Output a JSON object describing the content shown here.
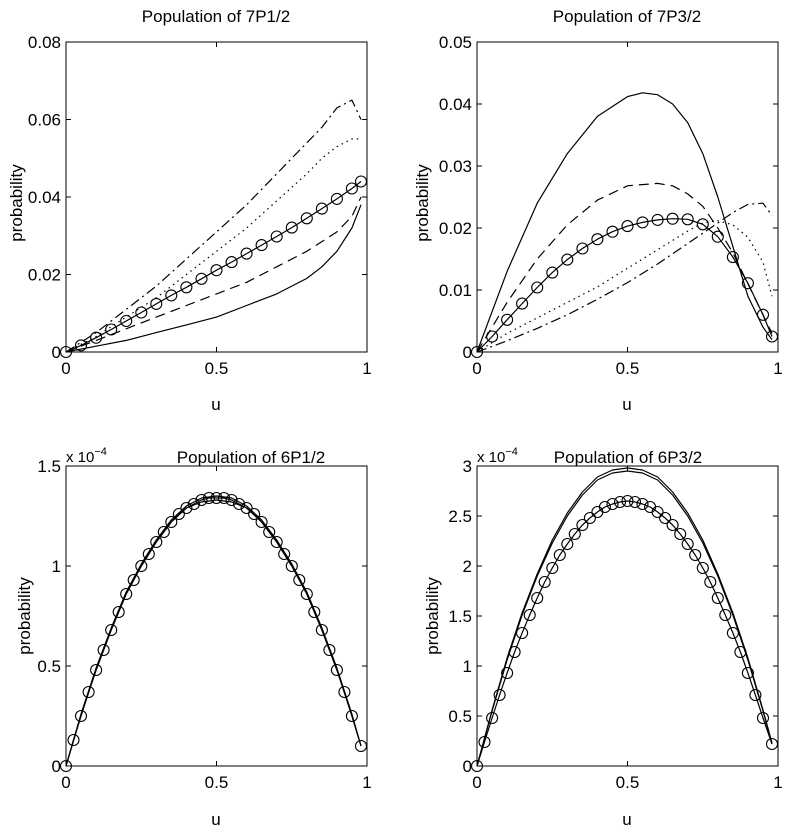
{
  "chart_data": [
    {
      "type": "line",
      "title": "Population of 7P1/2",
      "xlabel": "u",
      "ylabel": "probability",
      "multiplier_base": "",
      "multiplier_exp": "",
      "xlim": [
        0,
        1
      ],
      "ylim": [
        0,
        0.08
      ],
      "xticks": [
        0,
        0.5,
        1
      ],
      "xtick_labels": [
        "0",
        "0.5",
        "1"
      ],
      "yticks": [
        0,
        0.02,
        0.04,
        0.06,
        0.08
      ],
      "ytick_labels": [
        "0",
        "0.02",
        "0.04",
        "0.06",
        "0.08"
      ],
      "grid": false,
      "series": [
        {
          "name": "solid",
          "style": "solid",
          "markers": false,
          "x": [
            0,
            0.1,
            0.2,
            0.3,
            0.4,
            0.5,
            0.6,
            0.7,
            0.8,
            0.85,
            0.9,
            0.95,
            0.98
          ],
          "y": [
            0,
            0.0015,
            0.003,
            0.005,
            0.007,
            0.009,
            0.012,
            0.015,
            0.019,
            0.022,
            0.026,
            0.032,
            0.038
          ]
        },
        {
          "name": "dashed",
          "style": "dashed",
          "markers": false,
          "x": [
            0,
            0.1,
            0.2,
            0.3,
            0.4,
            0.5,
            0.6,
            0.7,
            0.8,
            0.9,
            0.95,
            0.98
          ],
          "y": [
            0,
            0.003,
            0.006,
            0.009,
            0.012,
            0.015,
            0.018,
            0.022,
            0.026,
            0.031,
            0.035,
            0.04
          ]
        },
        {
          "name": "circles",
          "style": "solid",
          "markers": true,
          "x": [
            0,
            0.05,
            0.1,
            0.15,
            0.2,
            0.25,
            0.3,
            0.35,
            0.4,
            0.45,
            0.5,
            0.55,
            0.6,
            0.65,
            0.7,
            0.75,
            0.8,
            0.85,
            0.9,
            0.95,
            0.98
          ],
          "y": [
            0,
            0.0017,
            0.0037,
            0.0058,
            0.008,
            0.0102,
            0.0124,
            0.0146,
            0.0167,
            0.0189,
            0.0211,
            0.0232,
            0.0254,
            0.0276,
            0.0298,
            0.0321,
            0.0345,
            0.037,
            0.0395,
            0.0422,
            0.044
          ]
        },
        {
          "name": "dotted",
          "style": "dotted",
          "markers": false,
          "x": [
            0,
            0.1,
            0.2,
            0.3,
            0.4,
            0.5,
            0.6,
            0.7,
            0.8,
            0.85,
            0.9,
            0.95,
            0.98
          ],
          "y": [
            0,
            0.004,
            0.009,
            0.014,
            0.02,
            0.026,
            0.032,
            0.039,
            0.046,
            0.05,
            0.053,
            0.055,
            0.055
          ]
        },
        {
          "name": "dashdot",
          "style": "dashdot",
          "markers": false,
          "x": [
            0,
            0.1,
            0.2,
            0.3,
            0.4,
            0.5,
            0.6,
            0.7,
            0.8,
            0.85,
            0.9,
            0.95,
            0.98
          ],
          "y": [
            0,
            0.005,
            0.011,
            0.017,
            0.024,
            0.031,
            0.038,
            0.046,
            0.054,
            0.058,
            0.063,
            0.065,
            0.06
          ]
        }
      ]
    },
    {
      "type": "line",
      "title": "Population of 7P3/2",
      "xlabel": "u",
      "ylabel": "probability",
      "multiplier_base": "",
      "multiplier_exp": "",
      "xlim": [
        0,
        1
      ],
      "ylim": [
        0,
        0.05
      ],
      "xticks": [
        0,
        0.5,
        1
      ],
      "xtick_labels": [
        "0",
        "0.5",
        "1"
      ],
      "yticks": [
        0,
        0.01,
        0.02,
        0.03,
        0.04,
        0.05
      ],
      "ytick_labels": [
        "0",
        "0.01",
        "0.02",
        "0.03",
        "0.04",
        "0.05"
      ],
      "grid": false,
      "series": [
        {
          "name": "solid",
          "style": "solid",
          "markers": false,
          "x": [
            0,
            0.1,
            0.2,
            0.3,
            0.4,
            0.5,
            0.55,
            0.6,
            0.65,
            0.7,
            0.75,
            0.8,
            0.85,
            0.9,
            0.95,
            0.98
          ],
          "y": [
            0,
            0.013,
            0.024,
            0.032,
            0.038,
            0.0412,
            0.0418,
            0.0415,
            0.04,
            0.037,
            0.032,
            0.025,
            0.017,
            0.009,
            0.004,
            0.002
          ]
        },
        {
          "name": "dashed",
          "style": "dashed",
          "markers": false,
          "x": [
            0,
            0.1,
            0.2,
            0.3,
            0.4,
            0.5,
            0.6,
            0.65,
            0.7,
            0.75,
            0.8,
            0.85,
            0.9,
            0.95,
            0.98
          ],
          "y": [
            0,
            0.008,
            0.015,
            0.0205,
            0.0245,
            0.0268,
            0.0272,
            0.0268,
            0.0255,
            0.0235,
            0.02,
            0.016,
            0.011,
            0.006,
            0.003
          ]
        },
        {
          "name": "circles",
          "style": "solid",
          "markers": true,
          "x": [
            0,
            0.05,
            0.1,
            0.15,
            0.2,
            0.25,
            0.3,
            0.35,
            0.4,
            0.45,
            0.5,
            0.55,
            0.6,
            0.65,
            0.7,
            0.75,
            0.8,
            0.85,
            0.9,
            0.95,
            0.98
          ],
          "y": [
            0,
            0.0025,
            0.0052,
            0.0078,
            0.0104,
            0.0128,
            0.0149,
            0.0167,
            0.0182,
            0.0194,
            0.0203,
            0.0209,
            0.0213,
            0.0215,
            0.0214,
            0.0206,
            0.0186,
            0.0153,
            0.0111,
            0.006,
            0.0025
          ]
        },
        {
          "name": "dotted",
          "style": "dotted",
          "markers": false,
          "x": [
            0,
            0.1,
            0.2,
            0.3,
            0.4,
            0.5,
            0.6,
            0.7,
            0.75,
            0.8,
            0.85,
            0.9,
            0.95,
            0.98
          ],
          "y": [
            0,
            0.003,
            0.0055,
            0.008,
            0.0105,
            0.0135,
            0.0165,
            0.0195,
            0.0208,
            0.0212,
            0.0205,
            0.0185,
            0.0145,
            0.009
          ]
        },
        {
          "name": "dashdot",
          "style": "dashdot",
          "markers": false,
          "x": [
            0,
            0.1,
            0.2,
            0.3,
            0.4,
            0.5,
            0.6,
            0.7,
            0.8,
            0.85,
            0.9,
            0.95,
            0.98
          ],
          "y": [
            0,
            0.0018,
            0.0038,
            0.006,
            0.0085,
            0.0112,
            0.0142,
            0.0175,
            0.0208,
            0.0225,
            0.0238,
            0.024,
            0.022
          ]
        }
      ]
    },
    {
      "type": "line",
      "title": "Population of 6P1/2",
      "xlabel": "u",
      "ylabel": "probability",
      "multiplier_base": "x 10",
      "multiplier_exp": "−4",
      "xlim": [
        0,
        1
      ],
      "ylim": [
        0,
        1.5
      ],
      "xticks": [
        0,
        0.5,
        1
      ],
      "xtick_labels": [
        "0",
        "0.5",
        "1"
      ],
      "yticks": [
        0,
        0.5,
        1,
        1.5
      ],
      "ytick_labels": [
        "0",
        "0.5",
        "1",
        "1.5"
      ],
      "grid": false,
      "series": [
        {
          "name": "solid-a",
          "style": "solid",
          "markers": false,
          "x": [
            0,
            0.05,
            0.1,
            0.15,
            0.2,
            0.25,
            0.3,
            0.35,
            0.4,
            0.45,
            0.5,
            0.55,
            0.6,
            0.65,
            0.7,
            0.75,
            0.8,
            0.85,
            0.9,
            0.95,
            0.98
          ],
          "y": [
            0,
            0.25,
            0.48,
            0.68,
            0.86,
            1.0,
            1.12,
            1.22,
            1.29,
            1.32,
            1.33,
            1.32,
            1.29,
            1.22,
            1.12,
            1.0,
            0.86,
            0.68,
            0.48,
            0.25,
            0.1
          ]
        },
        {
          "name": "solid-b",
          "style": "solid",
          "markers": false,
          "x": [
            0,
            0.05,
            0.1,
            0.15,
            0.2,
            0.25,
            0.3,
            0.35,
            0.4,
            0.45,
            0.5,
            0.55,
            0.6,
            0.65,
            0.7,
            0.75,
            0.8,
            0.85,
            0.9,
            0.95,
            0.98
          ],
          "y": [
            0,
            0.26,
            0.49,
            0.69,
            0.87,
            1.01,
            1.13,
            1.23,
            1.3,
            1.34,
            1.35,
            1.34,
            1.3,
            1.23,
            1.13,
            1.01,
            0.87,
            0.69,
            0.49,
            0.26,
            0.1
          ]
        },
        {
          "name": "circles",
          "style": "solid",
          "markers": true,
          "x": [
            0,
            0.025,
            0.05,
            0.075,
            0.1,
            0.125,
            0.15,
            0.175,
            0.2,
            0.225,
            0.25,
            0.275,
            0.3,
            0.325,
            0.35,
            0.375,
            0.4,
            0.425,
            0.45,
            0.475,
            0.5,
            0.525,
            0.55,
            0.575,
            0.6,
            0.625,
            0.65,
            0.675,
            0.7,
            0.725,
            0.75,
            0.775,
            0.8,
            0.825,
            0.85,
            0.875,
            0.9,
            0.925,
            0.95,
            0.98
          ],
          "y": [
            0,
            0.13,
            0.25,
            0.37,
            0.48,
            0.58,
            0.68,
            0.77,
            0.86,
            0.93,
            1.0,
            1.06,
            1.12,
            1.17,
            1.22,
            1.26,
            1.29,
            1.31,
            1.33,
            1.34,
            1.34,
            1.34,
            1.33,
            1.31,
            1.29,
            1.26,
            1.22,
            1.17,
            1.12,
            1.06,
            1.0,
            0.93,
            0.86,
            0.77,
            0.68,
            0.58,
            0.48,
            0.37,
            0.25,
            0.1
          ]
        }
      ]
    },
    {
      "type": "line",
      "title": "Population of 6P3/2",
      "xlabel": "u",
      "ylabel": "probability",
      "multiplier_base": "x 10",
      "multiplier_exp": "−4",
      "xlim": [
        0,
        1
      ],
      "ylim": [
        0,
        3
      ],
      "xticks": [
        0,
        0.5,
        1
      ],
      "xtick_labels": [
        "0",
        "0.5",
        "1"
      ],
      "yticks": [
        0,
        0.5,
        1,
        1.5,
        2,
        2.5,
        3
      ],
      "ytick_labels": [
        "0",
        "0.5",
        "1",
        "1.5",
        "2",
        "2.5",
        "3"
      ],
      "grid": false,
      "series": [
        {
          "name": "solid-a",
          "style": "solid",
          "markers": false,
          "x": [
            0,
            0.05,
            0.1,
            0.15,
            0.2,
            0.25,
            0.3,
            0.35,
            0.4,
            0.45,
            0.5,
            0.55,
            0.6,
            0.65,
            0.7,
            0.75,
            0.8,
            0.85,
            0.9,
            0.95,
            0.98
          ],
          "y": [
            0,
            0.55,
            1.06,
            1.51,
            1.9,
            2.23,
            2.5,
            2.71,
            2.86,
            2.93,
            2.95,
            2.93,
            2.86,
            2.71,
            2.5,
            2.23,
            1.9,
            1.51,
            1.06,
            0.55,
            0.22
          ]
        },
        {
          "name": "solid-b",
          "style": "solid",
          "markers": false,
          "x": [
            0,
            0.05,
            0.1,
            0.15,
            0.2,
            0.25,
            0.3,
            0.35,
            0.4,
            0.45,
            0.5,
            0.55,
            0.6,
            0.65,
            0.7,
            0.75,
            0.8,
            0.85,
            0.9,
            0.95,
            0.98
          ],
          "y": [
            0,
            0.56,
            1.08,
            1.53,
            1.92,
            2.26,
            2.53,
            2.74,
            2.89,
            2.96,
            2.98,
            2.96,
            2.89,
            2.74,
            2.53,
            2.26,
            1.92,
            1.53,
            1.08,
            0.56,
            0.23
          ]
        },
        {
          "name": "circles",
          "style": "solid",
          "markers": true,
          "x": [
            0,
            0.025,
            0.05,
            0.075,
            0.1,
            0.125,
            0.15,
            0.175,
            0.2,
            0.225,
            0.25,
            0.275,
            0.3,
            0.325,
            0.35,
            0.375,
            0.4,
            0.425,
            0.45,
            0.475,
            0.5,
            0.525,
            0.55,
            0.575,
            0.6,
            0.625,
            0.65,
            0.675,
            0.7,
            0.725,
            0.75,
            0.775,
            0.8,
            0.825,
            0.85,
            0.875,
            0.9,
            0.925,
            0.95,
            0.98
          ],
          "y": [
            0,
            0.24,
            0.48,
            0.71,
            0.93,
            1.14,
            1.33,
            1.51,
            1.68,
            1.84,
            1.98,
            2.11,
            2.22,
            2.32,
            2.41,
            2.48,
            2.54,
            2.59,
            2.62,
            2.64,
            2.65,
            2.64,
            2.62,
            2.59,
            2.54,
            2.48,
            2.41,
            2.32,
            2.22,
            2.11,
            1.98,
            1.84,
            1.68,
            1.51,
            1.33,
            1.14,
            0.93,
            0.71,
            0.48,
            0.22
          ]
        }
      ]
    }
  ]
}
